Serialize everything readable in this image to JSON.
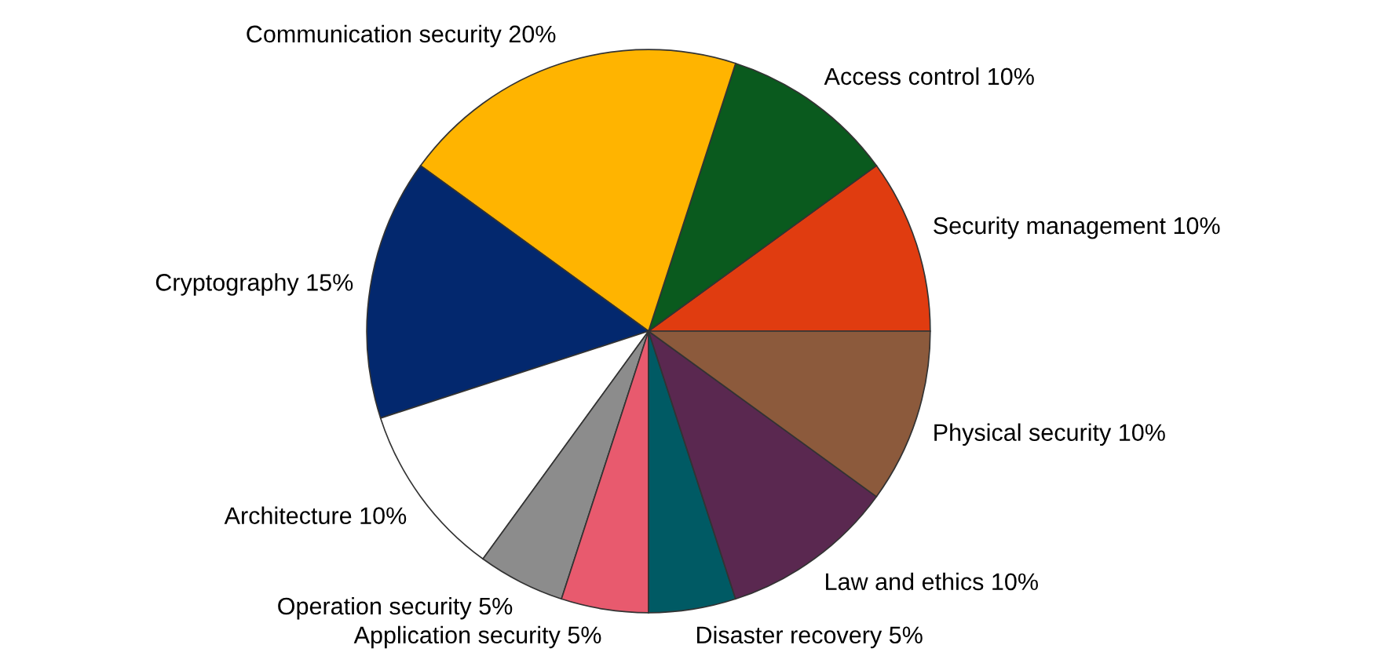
{
  "chart_data": {
    "type": "pie",
    "categories": [
      "Security management",
      "Access control",
      "Communication security",
      "Cryptography",
      "Architecture",
      "Operation security",
      "Application security",
      "Disaster recovery",
      "Law and ethics",
      "Physical security"
    ],
    "values": [
      10,
      10,
      20,
      15,
      10,
      5,
      5,
      5,
      10,
      10
    ],
    "value_labels": [
      "10%",
      "10%",
      "20%",
      "15%",
      "10%",
      "5%",
      "5%",
      "5%",
      "10%",
      "10%"
    ],
    "colors": [
      "#e03c10",
      "#0a5a1e",
      "#ffb400",
      "#03286e",
      "#ffffff",
      "#8c8c8c",
      "#e85a6e",
      "#005a64",
      "#5a2850",
      "#8c5a3c"
    ],
    "legend": false
  }
}
